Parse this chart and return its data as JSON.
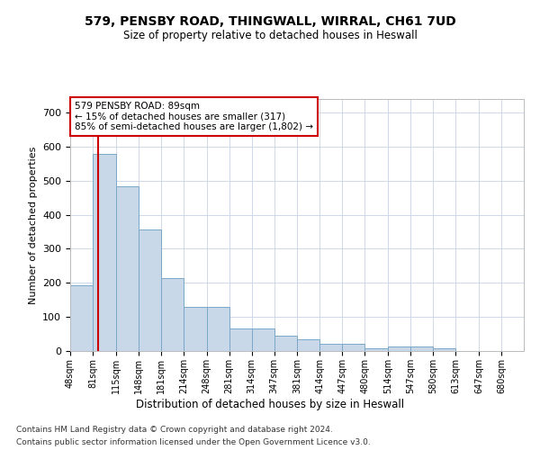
{
  "title_line1": "579, PENSBY ROAD, THINGWALL, WIRRAL, CH61 7UD",
  "title_line2": "Size of property relative to detached houses in Heswall",
  "xlabel": "Distribution of detached houses by size in Heswall",
  "ylabel": "Number of detached properties",
  "footer_line1": "Contains HM Land Registry data © Crown copyright and database right 2024.",
  "footer_line2": "Contains public sector information licensed under the Open Government Licence v3.0.",
  "annotation_line1": "579 PENSBY ROAD: 89sqm",
  "annotation_line2": "← 15% of detached houses are smaller (317)",
  "annotation_line3": "85% of semi-detached houses are larger (1,802) →",
  "bar_color": "#c8d8e8",
  "bar_edge_color": "#7aa8c8",
  "vline_color": "#cc0000",
  "annotation_box_edge": "#cc0000",
  "background_color": "#ffffff",
  "grid_color": "#d0d8e8",
  "bins": [
    48,
    81,
    115,
    148,
    181,
    214,
    248,
    281,
    314,
    347,
    381,
    414,
    447,
    480,
    514,
    547,
    580,
    613,
    647,
    680,
    713
  ],
  "bar_heights": [
    193,
    580,
    483,
    356,
    215,
    130,
    130,
    65,
    65,
    44,
    35,
    20,
    20,
    8,
    13,
    13,
    8,
    0,
    0,
    0
  ],
  "vline_x": 89,
  "ylim": [
    0,
    740
  ],
  "yticks": [
    0,
    100,
    200,
    300,
    400,
    500,
    600,
    700
  ]
}
